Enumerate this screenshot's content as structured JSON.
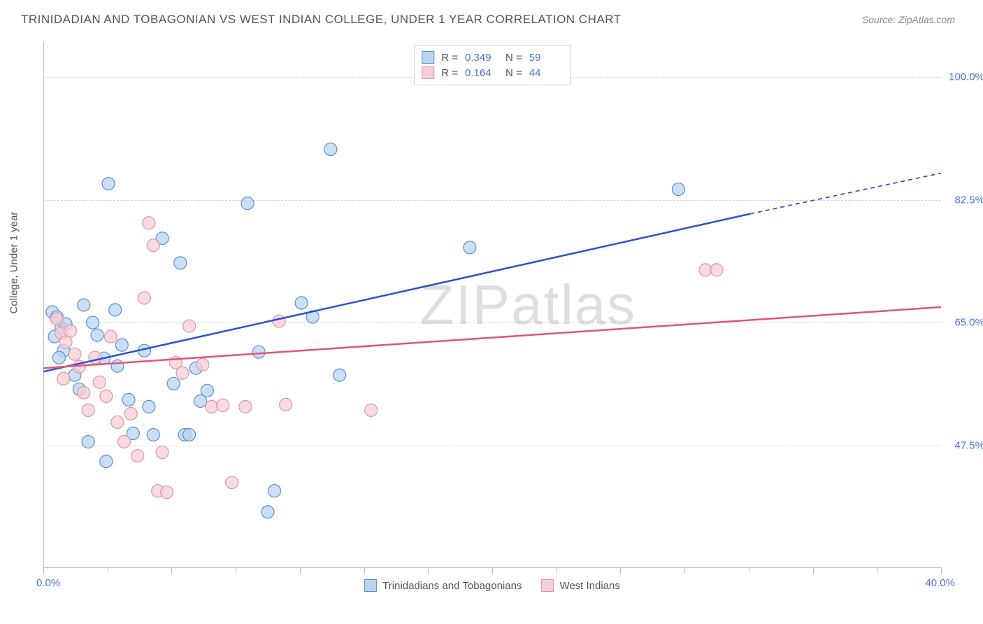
{
  "title": "TRINIDADIAN AND TOBAGONIAN VS WEST INDIAN COLLEGE, UNDER 1 YEAR CORRELATION CHART",
  "source": "Source: ZipAtlas.com",
  "y_axis_label": "College, Under 1 year",
  "watermark": "ZIPatlas",
  "chart": {
    "type": "scatter",
    "xlim": [
      0,
      40
    ],
    "ylim": [
      30,
      105
    ],
    "x_label_min": "0.0%",
    "x_label_max": "40.0%",
    "x_ticks": [
      0,
      2.86,
      5.71,
      8.57,
      11.43,
      14.29,
      17.14,
      20,
      22.86,
      25.71,
      28.57,
      31.43,
      34.29,
      37.14,
      40
    ],
    "y_gridlines": [
      {
        "value": 47.5,
        "label": "47.5%"
      },
      {
        "value": 65.0,
        "label": "65.0%"
      },
      {
        "value": 82.5,
        "label": "82.5%"
      },
      {
        "value": 100.0,
        "label": "100.0%"
      }
    ],
    "background_color": "#ffffff",
    "grid_color": "#d5d5d5",
    "axis_color": "#bdbdbd",
    "marker_radius": 9,
    "marker_stroke_width": 1.2,
    "series": [
      {
        "name": "Trinidadians and Tobagonians",
        "fill": "#b9d4f0",
        "stroke": "#5b8fcf",
        "trend_color": "#2a53c9",
        "trend_width": 2.5,
        "R": "0.349",
        "N": "59",
        "trend": {
          "x1": 0,
          "y1": 58.0,
          "x2": 31.5,
          "y2": 80.5,
          "x_dash_to": 40,
          "y_dash_to": 86.3
        },
        "points": [
          [
            0.4,
            66.5
          ],
          [
            0.6,
            65.8
          ],
          [
            0.8,
            64.2
          ],
          [
            0.5,
            63.0
          ],
          [
            1.0,
            64.8
          ],
          [
            0.9,
            61.0
          ],
          [
            0.7,
            60.0
          ],
          [
            1.8,
            67.5
          ],
          [
            2.2,
            65.0
          ],
          [
            2.4,
            63.2
          ],
          [
            2.7,
            59.9
          ],
          [
            1.4,
            57.5
          ],
          [
            1.6,
            55.5
          ],
          [
            2.0,
            48.0
          ],
          [
            2.9,
            84.8
          ],
          [
            3.2,
            66.8
          ],
          [
            3.5,
            61.8
          ],
          [
            3.3,
            58.8
          ],
          [
            3.8,
            54.0
          ],
          [
            4.0,
            49.2
          ],
          [
            2.8,
            45.2
          ],
          [
            4.5,
            61.0
          ],
          [
            4.7,
            53.0
          ],
          [
            4.9,
            49.0
          ],
          [
            5.3,
            77.0
          ],
          [
            5.8,
            56.3
          ],
          [
            6.1,
            73.5
          ],
          [
            6.3,
            49.0
          ],
          [
            6.5,
            49.0
          ],
          [
            6.8,
            58.5
          ],
          [
            7.0,
            53.8
          ],
          [
            7.3,
            55.3
          ],
          [
            9.1,
            82.0
          ],
          [
            9.6,
            60.8
          ],
          [
            10.0,
            38.0
          ],
          [
            10.3,
            41.0
          ],
          [
            11.5,
            67.8
          ],
          [
            12.0,
            65.8
          ],
          [
            12.8,
            89.7
          ],
          [
            13.2,
            57.5
          ],
          [
            19.0,
            75.7
          ],
          [
            28.3,
            84.0
          ]
        ]
      },
      {
        "name": "West Indians",
        "fill": "#f5cfd6",
        "stroke": "#e094a6",
        "trend_color": "#e05578",
        "trend_width": 2.5,
        "R": "0.164",
        "N": "44",
        "trend": {
          "x1": 0,
          "y1": 58.5,
          "x2": 40,
          "y2": 67.2,
          "x_dash_to": 40,
          "y_dash_to": 67.2
        },
        "points": [
          [
            0.6,
            65.5
          ],
          [
            0.8,
            63.5
          ],
          [
            1.0,
            62.2
          ],
          [
            1.2,
            63.8
          ],
          [
            1.4,
            60.5
          ],
          [
            1.6,
            58.7
          ],
          [
            0.9,
            57.0
          ],
          [
            1.8,
            55.0
          ],
          [
            2.0,
            52.5
          ],
          [
            2.3,
            60.0
          ],
          [
            2.5,
            56.5
          ],
          [
            2.8,
            54.5
          ],
          [
            3.0,
            63.0
          ],
          [
            3.3,
            50.8
          ],
          [
            3.6,
            48.0
          ],
          [
            3.9,
            52.0
          ],
          [
            4.2,
            46.0
          ],
          [
            4.5,
            68.5
          ],
          [
            4.7,
            79.2
          ],
          [
            4.9,
            76.0
          ],
          [
            5.1,
            41.0
          ],
          [
            5.3,
            46.5
          ],
          [
            5.5,
            40.8
          ],
          [
            5.9,
            59.3
          ],
          [
            6.2,
            57.8
          ],
          [
            6.5,
            64.5
          ],
          [
            7.1,
            59.0
          ],
          [
            7.5,
            53.0
          ],
          [
            8.0,
            53.2
          ],
          [
            8.4,
            42.2
          ],
          [
            9.0,
            53.0
          ],
          [
            10.5,
            65.2
          ],
          [
            10.8,
            53.3
          ],
          [
            14.6,
            52.5
          ],
          [
            29.5,
            72.5
          ],
          [
            30.0,
            72.5
          ]
        ]
      }
    ]
  },
  "legend_bottom": [
    {
      "label": "Trinidadians and Tobagonians",
      "fill": "#b9d4f0",
      "stroke": "#5b8fcf"
    },
    {
      "label": "West Indians",
      "fill": "#f5cfd6",
      "stroke": "#e094a6"
    }
  ]
}
